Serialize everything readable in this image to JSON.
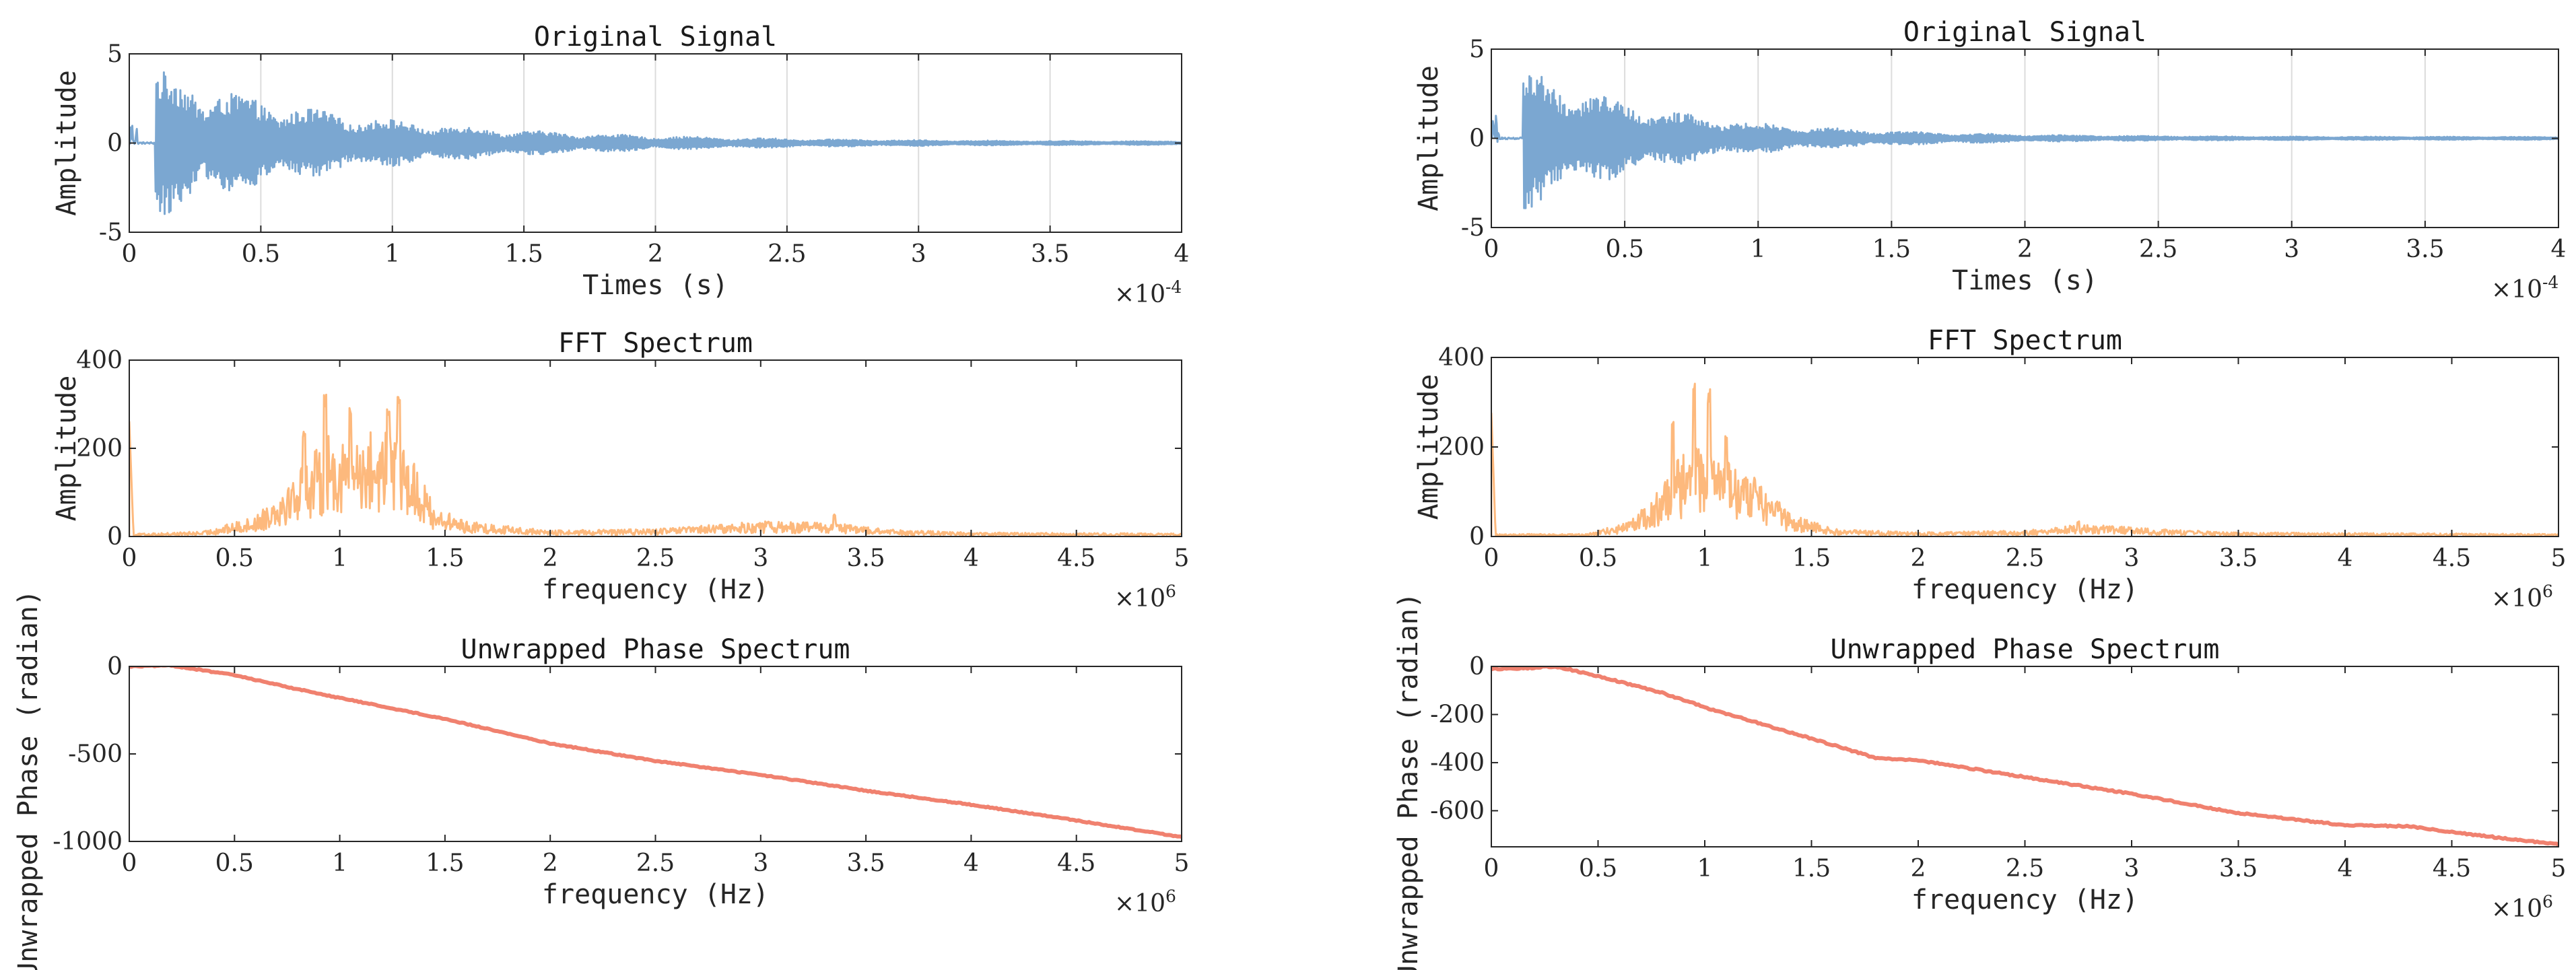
{
  "chart_data": [
    {
      "id": "left-original",
      "type": "line",
      "kind": "signal",
      "title": "Original Signal",
      "xlabel": "Times (s)",
      "ylabel": "Amplitude",
      "xlim": [
        0,
        4
      ],
      "ylim": [
        -5,
        5
      ],
      "x_exponent": "-4",
      "xticks": [
        0,
        0.5,
        1,
        1.5,
        2,
        2.5,
        3,
        3.5,
        4
      ],
      "yticks": [
        -5,
        0,
        5
      ],
      "xgrid": true,
      "color": "#7ba7d1",
      "series": [
        {
          "name": "signal",
          "onset": 0.1,
          "amplitude": 4.1,
          "decay": 0.75,
          "points": 1400
        }
      ]
    },
    {
      "id": "left-fft",
      "type": "line",
      "kind": "spectrum",
      "title": "FFT Spectrum",
      "xlabel": "frequency (Hz)",
      "ylabel": "Amplitude",
      "xlim": [
        0,
        5
      ],
      "ylim": [
        0,
        400
      ],
      "x_exponent": "6",
      "xticks": [
        0,
        0.5,
        1,
        1.5,
        2,
        2.5,
        3,
        3.5,
        4,
        4.5,
        5
      ],
      "yticks": [
        0,
        200,
        400
      ],
      "xgrid": false,
      "color": "#fdb97d",
      "series": [
        {
          "name": "fft",
          "dc_value": 260,
          "points": 1400,
          "envelope": [
            [
              0,
              5
            ],
            [
              0.35,
              10
            ],
            [
              0.6,
              40
            ],
            [
              0.75,
              110
            ],
            [
              0.95,
              200
            ],
            [
              1.15,
              210
            ],
            [
              1.3,
              200
            ],
            [
              1.45,
              60
            ],
            [
              1.6,
              30
            ],
            [
              2.0,
              12
            ],
            [
              2.5,
              15
            ],
            [
              3.0,
              30
            ],
            [
              3.35,
              28
            ],
            [
              3.6,
              14
            ],
            [
              4.0,
              8
            ],
            [
              5.0,
              6
            ]
          ],
          "peaks": [
            [
              0.93,
              325
            ],
            [
              1.05,
              300
            ],
            [
              1.23,
              305
            ],
            [
              1.28,
              332
            ],
            [
              0.83,
              250
            ],
            [
              3.35,
              50
            ]
          ]
        }
      ]
    },
    {
      "id": "left-phase",
      "type": "line",
      "kind": "phase",
      "title": "Unwrapped Phase Spectrum",
      "xlabel": "frequency (Hz)",
      "ylabel": "Unwrapped Phase (radian)",
      "xlim": [
        0,
        5
      ],
      "ylim": [
        -1000,
        0
      ],
      "x_exponent": "6",
      "xticks": [
        0,
        0.5,
        1,
        1.5,
        2,
        2.5,
        3,
        3.5,
        4,
        4.5,
        5
      ],
      "yticks": [
        -1000,
        -500,
        0
      ],
      "xgrid": false,
      "color": "#f0816f",
      "series": [
        {
          "name": "phase",
          "points": [
            [
              0,
              0
            ],
            [
              0.2,
              5
            ],
            [
              0.5,
              -50
            ],
            [
              0.8,
              -130
            ],
            [
              1,
              -180
            ],
            [
              1.5,
              -300
            ],
            [
              2,
              -440
            ],
            [
              2.5,
              -540
            ],
            [
              3,
              -620
            ],
            [
              3.5,
              -710
            ],
            [
              4,
              -790
            ],
            [
              4.5,
              -880
            ],
            [
              5,
              -975
            ]
          ]
        }
      ]
    },
    {
      "id": "right-original",
      "type": "line",
      "kind": "signal",
      "title": "Original Signal",
      "xlabel": "Times (s)",
      "ylabel": "Amplitude",
      "xlim": [
        0,
        4
      ],
      "ylim": [
        -5,
        5
      ],
      "x_exponent": "-4",
      "xticks": [
        0,
        0.5,
        1,
        1.5,
        2,
        2.5,
        3,
        3.5,
        4
      ],
      "yticks": [
        -5,
        0,
        5
      ],
      "xgrid": true,
      "color": "#7ba7d1",
      "series": [
        {
          "name": "signal",
          "onset": 0.12,
          "amplitude": 4.0,
          "decay": 0.55,
          "points": 1400
        }
      ]
    },
    {
      "id": "right-fft",
      "type": "line",
      "kind": "spectrum",
      "title": "FFT Spectrum",
      "xlabel": "frequency (Hz)",
      "ylabel": "Amplitude",
      "xlim": [
        0,
        5
      ],
      "ylim": [
        0,
        400
      ],
      "x_exponent": "6",
      "xticks": [
        0,
        0.5,
        1,
        1.5,
        2,
        2.5,
        3,
        3.5,
        4,
        4.5,
        5
      ],
      "yticks": [
        0,
        200,
        400
      ],
      "xgrid": false,
      "color": "#fdb97d",
      "series": [
        {
          "name": "fft",
          "dc_value": 275,
          "points": 1400,
          "envelope": [
            [
              0,
              5
            ],
            [
              0.45,
              5
            ],
            [
              0.65,
              30
            ],
            [
              0.8,
              100
            ],
            [
              0.95,
              200
            ],
            [
              1.05,
              160
            ],
            [
              1.25,
              110
            ],
            [
              1.4,
              45
            ],
            [
              1.6,
              15
            ],
            [
              2.0,
              8
            ],
            [
              2.5,
              12
            ],
            [
              2.8,
              25
            ],
            [
              3.1,
              15
            ],
            [
              3.5,
              8
            ],
            [
              5.0,
              5
            ]
          ],
          "peaks": [
            [
              0.95,
              350
            ],
            [
              0.85,
              265
            ],
            [
              1.02,
              330
            ],
            [
              1.1,
              240
            ],
            [
              2.75,
              35
            ]
          ]
        }
      ]
    },
    {
      "id": "right-phase",
      "type": "line",
      "kind": "phase",
      "title": "Unwrapped Phase Spectrum",
      "xlabel": "frequency (Hz)",
      "ylabel": "Unwrapped Phase (radian)",
      "xlim": [
        0,
        5
      ],
      "ylim": [
        -750,
        0
      ],
      "x_exponent": "6",
      "xticks": [
        0,
        0.5,
        1,
        1.5,
        2,
        2.5,
        3,
        3.5,
        4,
        4.5,
        5
      ],
      "yticks": [
        -600,
        -400,
        -200,
        0
      ],
      "xgrid": false,
      "color": "#f0816f",
      "series": [
        {
          "name": "phase",
          "points": [
            [
              0,
              -10
            ],
            [
              0.15,
              -8
            ],
            [
              0.3,
              0
            ],
            [
              0.5,
              -40
            ],
            [
              0.8,
              -110
            ],
            [
              1,
              -170
            ],
            [
              1.5,
              -300
            ],
            [
              1.8,
              -380
            ],
            [
              2,
              -390
            ],
            [
              2.5,
              -460
            ],
            [
              3,
              -530
            ],
            [
              3.5,
              -610
            ],
            [
              4,
              -660
            ],
            [
              4.3,
              -665
            ],
            [
              4.6,
              -700
            ],
            [
              5,
              -740
            ]
          ]
        }
      ]
    }
  ]
}
